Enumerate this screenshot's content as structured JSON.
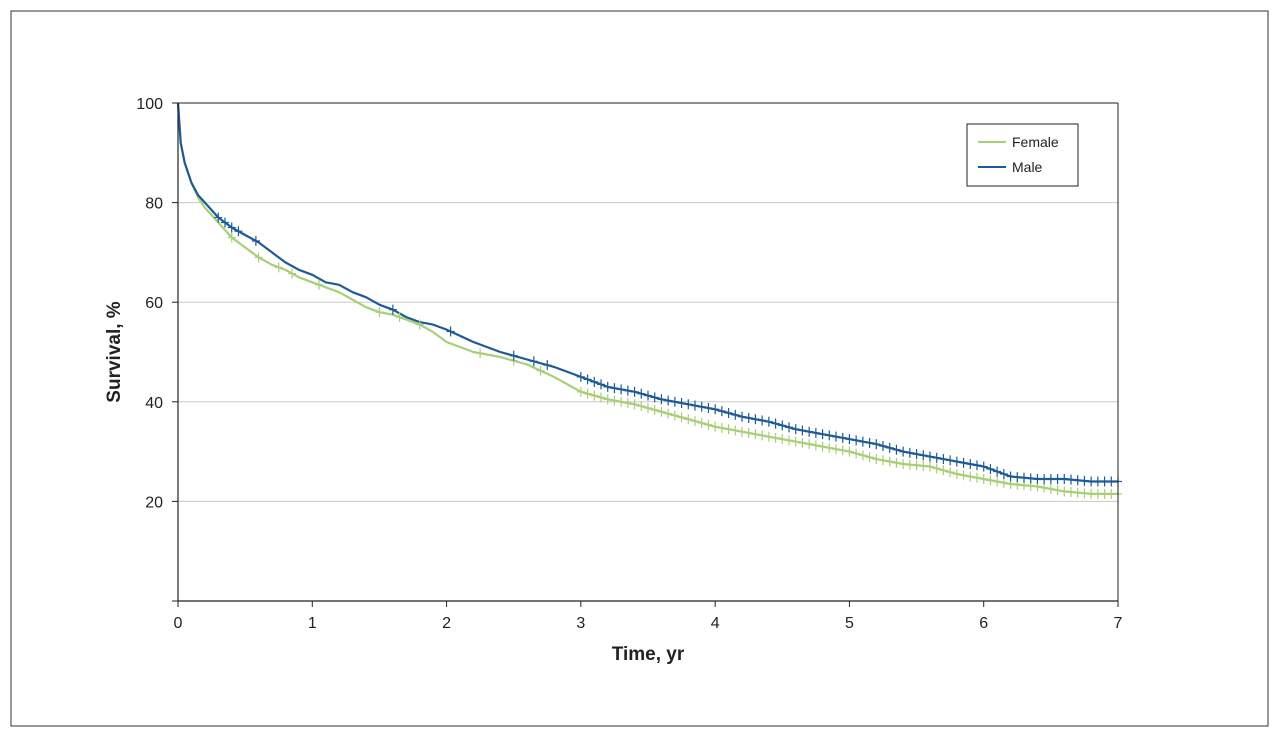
{
  "chart_data": {
    "type": "line",
    "xlabel": "Time, yr",
    "ylabel": "Survival, %",
    "xlim": [
      0,
      7
    ],
    "ylim": [
      0,
      100
    ],
    "x_ticks": [
      0,
      1,
      2,
      3,
      4,
      5,
      6,
      7
    ],
    "y_ticks": [
      20,
      40,
      60,
      80,
      100
    ],
    "grid": "horizontal",
    "legend_position": "top-right",
    "series": [
      {
        "name": "Female",
        "color": "#a8cf78",
        "x": [
          0,
          0.02,
          0.05,
          0.1,
          0.15,
          0.2,
          0.3,
          0.4,
          0.5,
          0.6,
          0.7,
          0.8,
          0.9,
          1.0,
          1.1,
          1.2,
          1.3,
          1.4,
          1.5,
          1.6,
          1.7,
          1.8,
          1.9,
          2.0,
          2.2,
          2.4,
          2.6,
          2.8,
          3.0,
          3.2,
          3.4,
          3.6,
          3.8,
          4.0,
          4.2,
          4.4,
          4.6,
          4.8,
          5.0,
          5.2,
          5.4,
          5.6,
          5.8,
          6.0,
          6.2,
          6.4,
          6.6,
          6.8,
          7.0
        ],
        "y": [
          100,
          92,
          88,
          84,
          81,
          79,
          76,
          73,
          71,
          69,
          67.5,
          66.5,
          65,
          64,
          63,
          62,
          60.5,
          59,
          58,
          57.5,
          56.5,
          55.5,
          54,
          52,
          50,
          49,
          47.5,
          45,
          42,
          40.5,
          39.5,
          38,
          36.5,
          35,
          34,
          33,
          32,
          31,
          30,
          28.5,
          27.5,
          27,
          25.5,
          24.5,
          23.5,
          23,
          22,
          21.5,
          21.5
        ],
        "censor_x": [
          0.4,
          0.6,
          0.75,
          0.85,
          1.05,
          1.5,
          1.65,
          1.8,
          2.25,
          2.5,
          2.7,
          3.0,
          3.05,
          3.1,
          3.15,
          3.2,
          3.25,
          3.3,
          3.35,
          3.4,
          3.45,
          3.5,
          3.55,
          3.6,
          3.65,
          3.7,
          3.75,
          3.8,
          3.85,
          3.9,
          3.95,
          4.0,
          4.05,
          4.1,
          4.15,
          4.2,
          4.25,
          4.3,
          4.35,
          4.4,
          4.45,
          4.5,
          4.55,
          4.6,
          4.65,
          4.7,
          4.75,
          4.8,
          4.85,
          4.9,
          4.95,
          5.0,
          5.05,
          5.1,
          5.15,
          5.2,
          5.25,
          5.3,
          5.35,
          5.4,
          5.45,
          5.5,
          5.55,
          5.6,
          5.65,
          5.7,
          5.75,
          5.8,
          5.85,
          5.9,
          5.95,
          6.0,
          6.05,
          6.1,
          6.15,
          6.2,
          6.25,
          6.3,
          6.35,
          6.4,
          6.45,
          6.5,
          6.55,
          6.6,
          6.65,
          6.7,
          6.75,
          6.8,
          6.85,
          6.9,
          6.95,
          7.0
        ]
      },
      {
        "name": "Male",
        "color": "#1e5a96",
        "x": [
          0,
          0.02,
          0.05,
          0.1,
          0.15,
          0.2,
          0.3,
          0.4,
          0.5,
          0.6,
          0.7,
          0.8,
          0.9,
          1.0,
          1.1,
          1.2,
          1.3,
          1.4,
          1.5,
          1.6,
          1.7,
          1.8,
          1.9,
          2.0,
          2.2,
          2.4,
          2.6,
          2.8,
          3.0,
          3.2,
          3.4,
          3.6,
          3.8,
          4.0,
          4.2,
          4.4,
          4.6,
          4.8,
          5.0,
          5.2,
          5.4,
          5.6,
          5.8,
          6.0,
          6.2,
          6.4,
          6.6,
          6.8,
          7.0
        ],
        "y": [
          100,
          92,
          88,
          84,
          81.5,
          80,
          77,
          75,
          73.5,
          72,
          70,
          68,
          66.5,
          65.5,
          64,
          63.5,
          62,
          61,
          59.5,
          58.5,
          57,
          56,
          55.5,
          54.5,
          52,
          50,
          48.5,
          47,
          45,
          43,
          42,
          40.5,
          39.5,
          38.5,
          37,
          36,
          34.5,
          33.5,
          32.5,
          31.5,
          30,
          29,
          28,
          27,
          25,
          24.5,
          24.5,
          24,
          24
        ],
        "censor_x": [
          0.3,
          0.35,
          0.4,
          0.45,
          0.58,
          1.6,
          2.03,
          2.5,
          2.65,
          2.75,
          3.0,
          3.05,
          3.1,
          3.15,
          3.2,
          3.25,
          3.3,
          3.35,
          3.4,
          3.45,
          3.5,
          3.55,
          3.6,
          3.65,
          3.7,
          3.75,
          3.8,
          3.85,
          3.9,
          3.95,
          4.0,
          4.05,
          4.1,
          4.15,
          4.2,
          4.25,
          4.3,
          4.35,
          4.4,
          4.45,
          4.5,
          4.55,
          4.6,
          4.65,
          4.7,
          4.75,
          4.8,
          4.85,
          4.9,
          4.95,
          5.0,
          5.05,
          5.1,
          5.15,
          5.2,
          5.25,
          5.3,
          5.35,
          5.4,
          5.45,
          5.5,
          5.55,
          5.6,
          5.65,
          5.7,
          5.75,
          5.8,
          5.85,
          5.9,
          5.95,
          6.0,
          6.05,
          6.1,
          6.15,
          6.2,
          6.25,
          6.3,
          6.35,
          6.4,
          6.45,
          6.5,
          6.55,
          6.6,
          6.65,
          6.7,
          6.75,
          6.8,
          6.85,
          6.9,
          6.95,
          7.0
        ]
      }
    ]
  }
}
